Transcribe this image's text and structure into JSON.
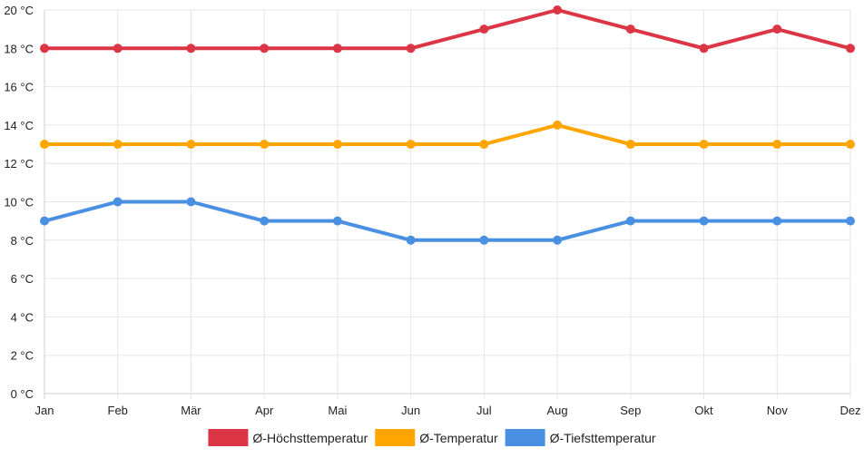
{
  "chart_data": {
    "type": "line",
    "categories": [
      "Jan",
      "Feb",
      "Mär",
      "Apr",
      "Mai",
      "Jun",
      "Jul",
      "Aug",
      "Sep",
      "Okt",
      "Nov",
      "Dez"
    ],
    "ylim": [
      0,
      20
    ],
    "y_ticks": [
      "0 °C",
      "2 °C",
      "4 °C",
      "6 °C",
      "8 °C",
      "10 °C",
      "12 °C",
      "14 °C",
      "16 °C",
      "18 °C",
      "20 °C"
    ],
    "y_unit": "°C",
    "grid": true,
    "legend_position": "bottom",
    "series": [
      {
        "name": "Ø-Höchsttemperatur",
        "color": "#dc3545",
        "values": [
          18,
          18,
          18,
          18,
          18,
          18,
          19,
          20,
          19,
          18,
          19,
          18
        ]
      },
      {
        "name": "Ø-Temperatur",
        "color": "#ffa500",
        "values": [
          13,
          13,
          13,
          13,
          13,
          13,
          13,
          14,
          13,
          13,
          13,
          13
        ]
      },
      {
        "name": "Ø-Tiefsttemperatur",
        "color": "#4a90e2",
        "values": [
          9,
          10,
          10,
          9,
          9,
          8,
          8,
          8,
          9,
          9,
          9,
          9
        ]
      }
    ]
  }
}
